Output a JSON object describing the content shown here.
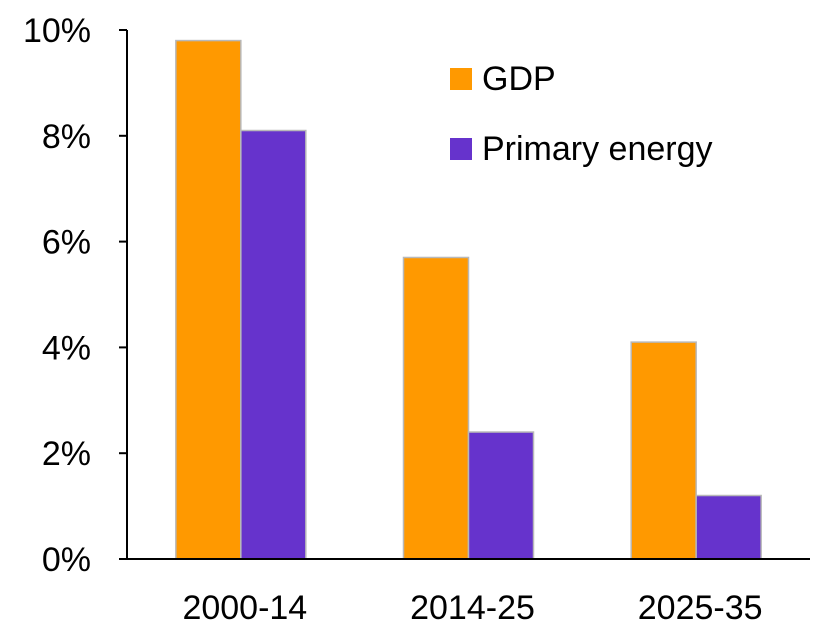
{
  "chart_data": {
    "type": "bar",
    "categories": [
      "2000-14",
      "2014-25",
      "2025-35"
    ],
    "series": [
      {
        "name": "GDP",
        "values": [
          9.8,
          5.7,
          4.1
        ],
        "color": "#FF9900"
      },
      {
        "name": "Primary energy",
        "values": [
          8.1,
          2.4,
          1.2
        ],
        "color": "#6633CC"
      }
    ],
    "ylim": [
      0,
      10
    ],
    "yticks": [
      0,
      2,
      4,
      6,
      8,
      10
    ],
    "ytick_labels": [
      "0%",
      "2%",
      "4%",
      "6%",
      "8%",
      "10%"
    ],
    "grid": false,
    "legend": "top-right",
    "title": "",
    "xlabel": "",
    "ylabel": ""
  }
}
